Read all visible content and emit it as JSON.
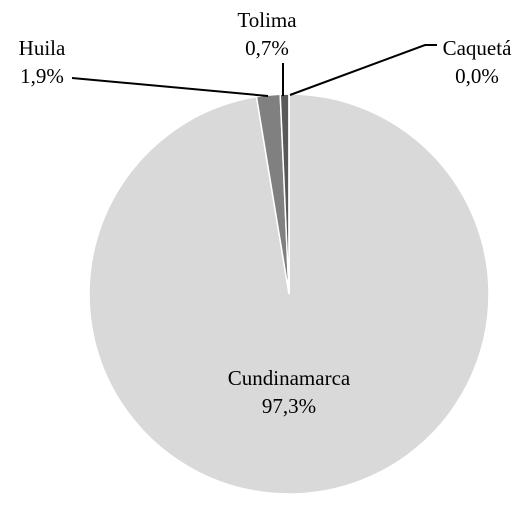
{
  "chart_data": {
    "type": "pie",
    "categories": [
      "Cundinamarca",
      "Huila",
      "Tolima",
      "Caquetá"
    ],
    "values": [
      97.3,
      1.9,
      0.7,
      0.0
    ],
    "value_labels": [
      "97,3%",
      "1,9%",
      "0,7%",
      "0,0%"
    ],
    "colors": [
      "#d9d9d9",
      "#808080",
      "#595959",
      "#3f3f3f"
    ]
  }
}
